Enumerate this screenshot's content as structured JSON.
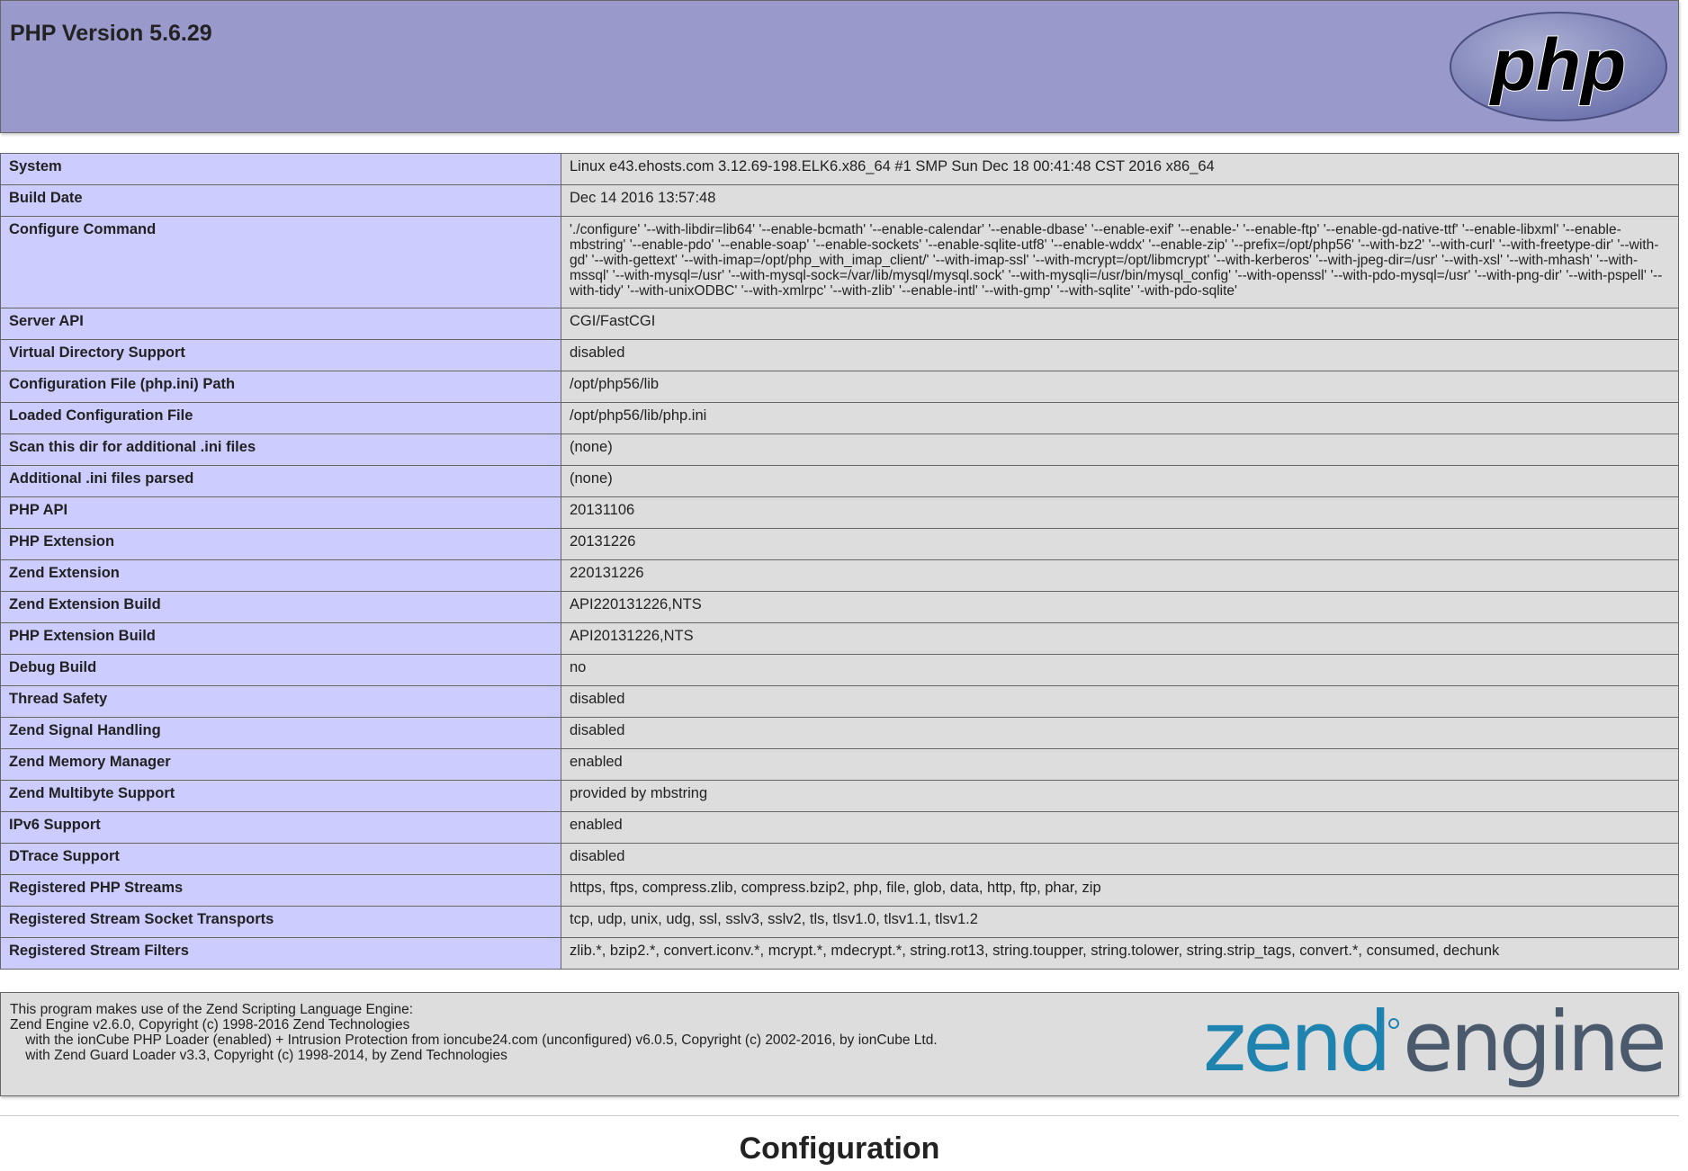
{
  "header": {
    "title": "PHP Version 5.6.29",
    "logo_text": "php"
  },
  "rows": [
    {
      "label": "System",
      "value": "Linux e43.ehosts.com 3.12.69-198.ELK6.x86_64 #1 SMP Sun Dec 18 00:41:48 CST 2016 x86_64"
    },
    {
      "label": "Build Date",
      "value": "Dec 14 2016 13:57:48"
    },
    {
      "label": "Configure Command",
      "value": "'./configure' '--with-libdir=lib64' '--enable-bcmath' '--enable-calendar' '--enable-dbase' '--enable-exif' '--enable-' '--enable-ftp' '--enable-gd-native-ttf' '--enable-libxml' '--enable-mbstring' '--enable-pdo' '--enable-soap' '--enable-sockets' '--enable-sqlite-utf8' '--enable-wddx' '--enable-zip' '--prefix=/opt/php56' '--with-bz2' '--with-curl' '--with-freetype-dir' '--with-gd' '--with-gettext' '--with-imap=/opt/php_with_imap_client/' '--with-imap-ssl' '--with-mcrypt=/opt/libmcrypt' '--with-kerberos' '--with-jpeg-dir=/usr' '--with-xsl' '--with-mhash' '--with-mssql' '--with-mysql=/usr' '--with-mysql-sock=/var/lib/mysql/mysql.sock' '--with-mysqli=/usr/bin/mysql_config' '--with-openssl' '--with-pdo-mysql=/usr' '--with-png-dir' '--with-pspell' '--with-tidy' '--with-unixODBC' '--with-xmlrpc' '--with-zlib' '--enable-intl' '--with-gmp' '--with-sqlite' '-with-pdo-sqlite'"
    },
    {
      "label": "Server API",
      "value": "CGI/FastCGI"
    },
    {
      "label": "Virtual Directory Support",
      "value": "disabled"
    },
    {
      "label": "Configuration File (php.ini) Path",
      "value": "/opt/php56/lib"
    },
    {
      "label": "Loaded Configuration File",
      "value": "/opt/php56/lib/php.ini"
    },
    {
      "label": "Scan this dir for additional .ini files",
      "value": "(none)"
    },
    {
      "label": "Additional .ini files parsed",
      "value": "(none)"
    },
    {
      "label": "PHP API",
      "value": "20131106"
    },
    {
      "label": "PHP Extension",
      "value": "20131226"
    },
    {
      "label": "Zend Extension",
      "value": "220131226"
    },
    {
      "label": "Zend Extension Build",
      "value": "API220131226,NTS"
    },
    {
      "label": "PHP Extension Build",
      "value": "API20131226,NTS"
    },
    {
      "label": "Debug Build",
      "value": "no"
    },
    {
      "label": "Thread Safety",
      "value": "disabled"
    },
    {
      "label": "Zend Signal Handling",
      "value": "disabled"
    },
    {
      "label": "Zend Memory Manager",
      "value": "enabled"
    },
    {
      "label": "Zend Multibyte Support",
      "value": "provided by mbstring"
    },
    {
      "label": "IPv6 Support",
      "value": "enabled"
    },
    {
      "label": "DTrace Support",
      "value": "disabled"
    },
    {
      "label": "Registered PHP Streams",
      "value": "https, ftps, compress.zlib, compress.bzip2, php, file, glob, data, http, ftp, phar, zip"
    },
    {
      "label": "Registered Stream Socket Transports",
      "value": "tcp, udp, unix, udg, ssl, sslv3, sslv2, tls, tlsv1.0, tlsv1.1, tlsv1.2"
    },
    {
      "label": "Registered Stream Filters",
      "value": "zlib.*, bzip2.*, convert.iconv.*, mcrypt.*, mdecrypt.*, string.rot13, string.toupper, string.tolower, string.strip_tags, convert.*, consumed, dechunk"
    }
  ],
  "footer": {
    "text": "This program makes use of the Zend Scripting Language Engine:\nZend Engine v2.6.0, Copyright (c) 1998-2016 Zend Technologies\n    with the ionCube PHP Loader (enabled) + Intrusion Protection from ioncube24.com (unconfigured) v6.0.5, Copyright (c) 2002-2016, by ionCube Ltd.\n    with Zend Guard Loader v3.3, Copyright (c) 1998-2014, by Zend Technologies",
    "logo_text_1": "zend",
    "logo_text_2": "engine"
  },
  "section_title": "Configuration",
  "colors": {
    "header": "#9999cc",
    "label_cell": "#ccccff",
    "value_cell": "#dddddd",
    "border": "#666666",
    "zend_blue": "#1f83b0",
    "zend_gray": "#4a5a6c"
  }
}
